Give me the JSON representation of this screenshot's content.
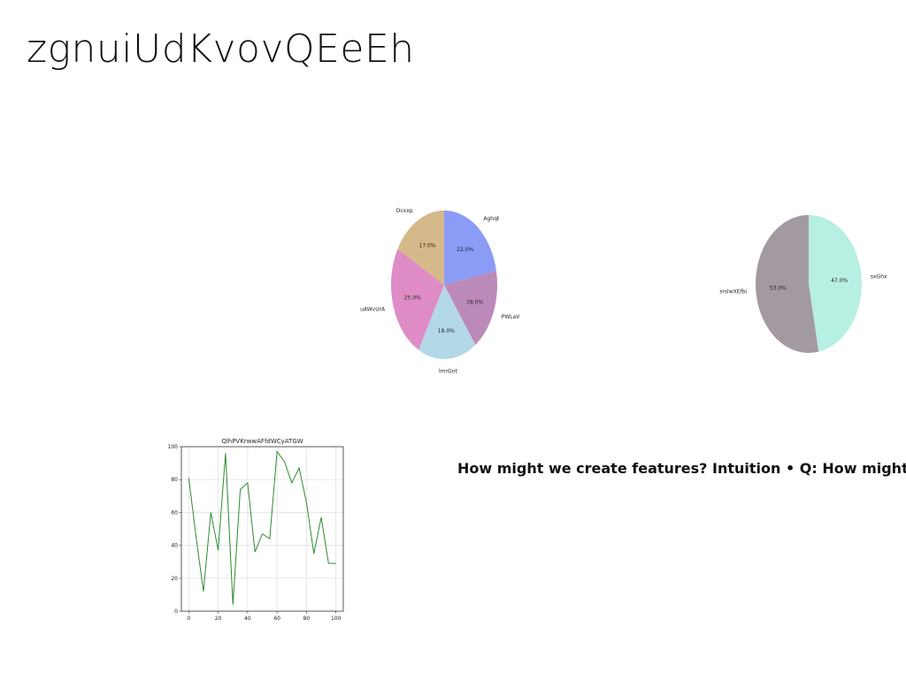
{
  "slide": {
    "title": "zgnuiUdKvovQEeEh",
    "text": "How might we create features? Intuition • Q: How might"
  },
  "chart_data": [
    {
      "type": "pie",
      "title": "",
      "slices": [
        {
          "label": "Aghqt",
          "value": 22.0,
          "display": "22.0%",
          "color": "#8a9cf5"
        },
        {
          "label": "PWLaV",
          "value": 18.0,
          "display": "18.0%",
          "color": "#bb8ab9"
        },
        {
          "label": "lmrGnt",
          "value": 18.0,
          "display": "18.0%",
          "color": "#b3d8e8"
        },
        {
          "label": "uAWvUrA",
          "value": 25.0,
          "display": "25.0%",
          "color": "#df8bc5"
        },
        {
          "label": "Dcxxp",
          "value": 17.0,
          "display": "17.0%",
          "color": "#d6b98a"
        }
      ],
      "start_angle": 90,
      "direction": "clockwise"
    },
    {
      "type": "pie",
      "title": "",
      "slices": [
        {
          "label": "sxGhx",
          "value": 47.0,
          "display": "47.0%",
          "color": "#b8efe3"
        },
        {
          "label": "srslwXEfbi",
          "value": 53.0,
          "display": "53.0%",
          "color": "#a39aa1"
        }
      ],
      "start_angle": 90,
      "direction": "clockwise"
    },
    {
      "type": "line",
      "title": "QlhPVKrwwAFfdWCyATGW",
      "xlabel": "",
      "ylabel": "",
      "x": [
        0,
        5,
        10,
        15,
        20,
        25,
        30,
        35,
        40,
        45,
        50,
        55,
        60,
        65,
        70,
        75,
        80,
        85,
        90,
        95,
        100
      ],
      "series": [
        {
          "values": [
            81,
            45,
            12,
            60,
            37,
            96,
            4,
            74,
            78,
            36,
            47,
            44,
            97,
            91,
            78,
            87,
            66,
            35,
            57,
            29,
            29
          ],
          "color": "#2e8b2e"
        }
      ],
      "xlim": [
        -5,
        105
      ],
      "ylim": [
        0,
        100
      ],
      "xticks": [
        0,
        20,
        40,
        60,
        80,
        100
      ],
      "yticks": [
        0,
        20,
        40,
        60,
        80,
        100
      ],
      "grid": true
    }
  ]
}
